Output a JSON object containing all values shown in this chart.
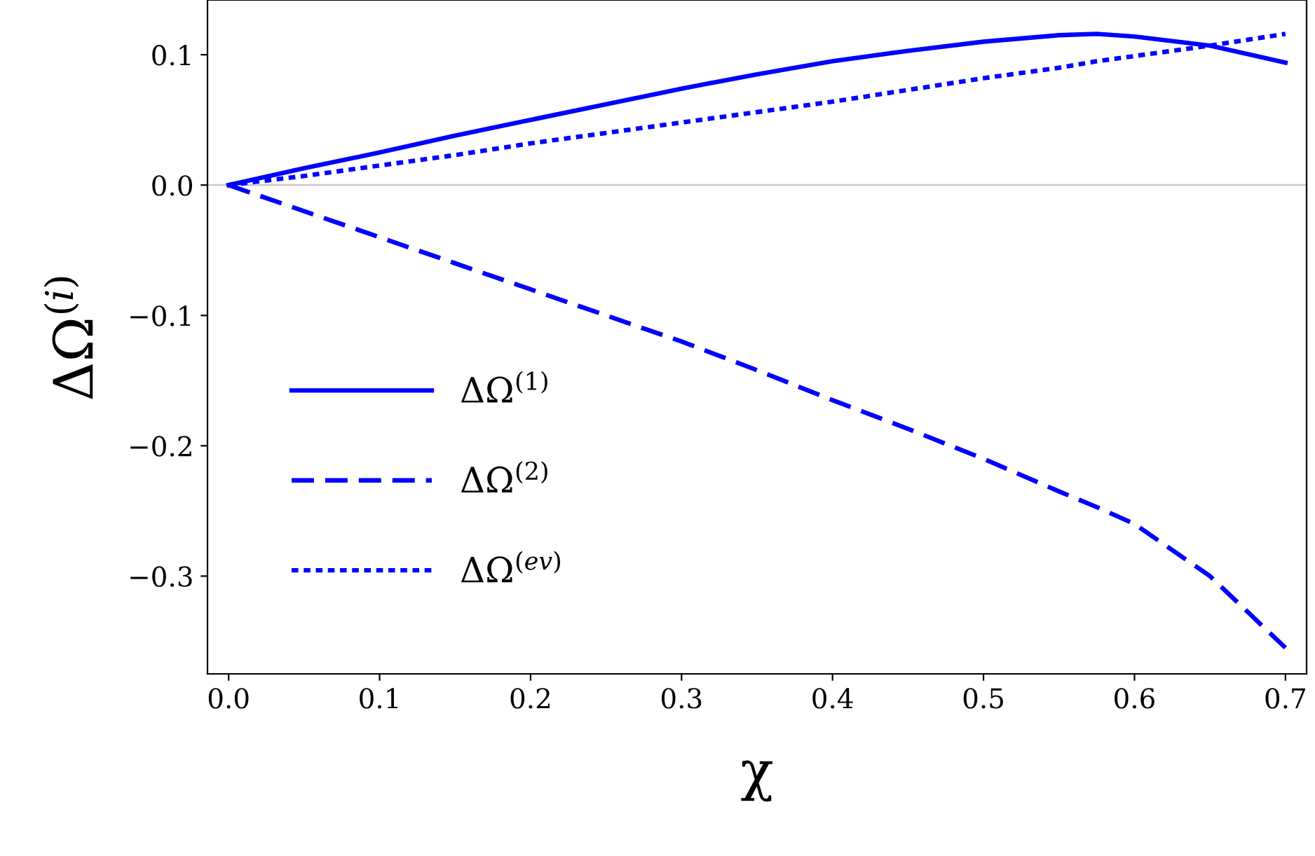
{
  "chart_data": {
    "type": "line",
    "xlabel": "χ",
    "ylabel": "ΔΩ$^{(i)}$",
    "x": [
      0,
      0.05,
      0.1,
      0.15,
      0.2,
      0.25,
      0.3,
      0.35,
      0.4,
      0.45,
      0.5,
      0.55,
      0.575,
      0.6,
      0.65,
      0.7
    ],
    "series": [
      {
        "name": "ΔΩ$^{(1)}$",
        "color": "#0000ff",
        "line_style": "solid",
        "values": [
          0,
          0.013,
          0.025,
          0.038,
          0.05,
          0.062,
          0.074,
          0.085,
          0.095,
          0.103,
          0.11,
          0.115,
          0.116,
          0.114,
          0.107,
          0.094
        ]
      },
      {
        "name": "ΔΩ$^{(2)}$",
        "color": "#0000ff",
        "line_style": "dashed",
        "values": [
          0,
          -0.02,
          -0.04,
          -0.06,
          -0.08,
          -0.1,
          -0.12,
          -0.142,
          -0.165,
          -0.187,
          -0.21,
          -0.235,
          -0.247,
          -0.26,
          -0.3,
          -0.355
        ]
      },
      {
        "name": "ΔΩ$^{(ev)}$",
        "color": "#0000ff",
        "line_style": "dotted",
        "values": [
          0,
          0.007,
          0.015,
          0.023,
          0.032,
          0.04,
          0.048,
          0.056,
          0.064,
          0.073,
          0.082,
          0.09,
          0.095,
          0.099,
          0.107,
          0.116
        ]
      }
    ],
    "xlim": [
      -0.014,
      0.714
    ],
    "ylim": [
      -0.375,
      0.142
    ],
    "xticks": [
      {
        "value": 0,
        "label": "0.0"
      },
      {
        "value": 0.1,
        "label": "0.1"
      },
      {
        "value": 0.2,
        "label": "0.2"
      },
      {
        "value": 0.3,
        "label": "0.3"
      },
      {
        "value": 0.4,
        "label": "0.4"
      },
      {
        "value": 0.5,
        "label": "0.5"
      },
      {
        "value": 0.6,
        "label": "0.6"
      },
      {
        "value": 0.7,
        "label": "0.7"
      }
    ],
    "yticks": [
      {
        "value": -0.3,
        "label": "−0.3"
      },
      {
        "value": -0.2,
        "label": "−0.2"
      },
      {
        "value": -0.1,
        "label": "−0.1"
      },
      {
        "value": 0,
        "label": "0.0"
      },
      {
        "value": 0.1,
        "label": "0.1"
      }
    ],
    "ref_lines": [
      {
        "axis": "y",
        "value": 0,
        "color": "#cccccc"
      }
    ],
    "legend": "lower left",
    "grid": false
  }
}
